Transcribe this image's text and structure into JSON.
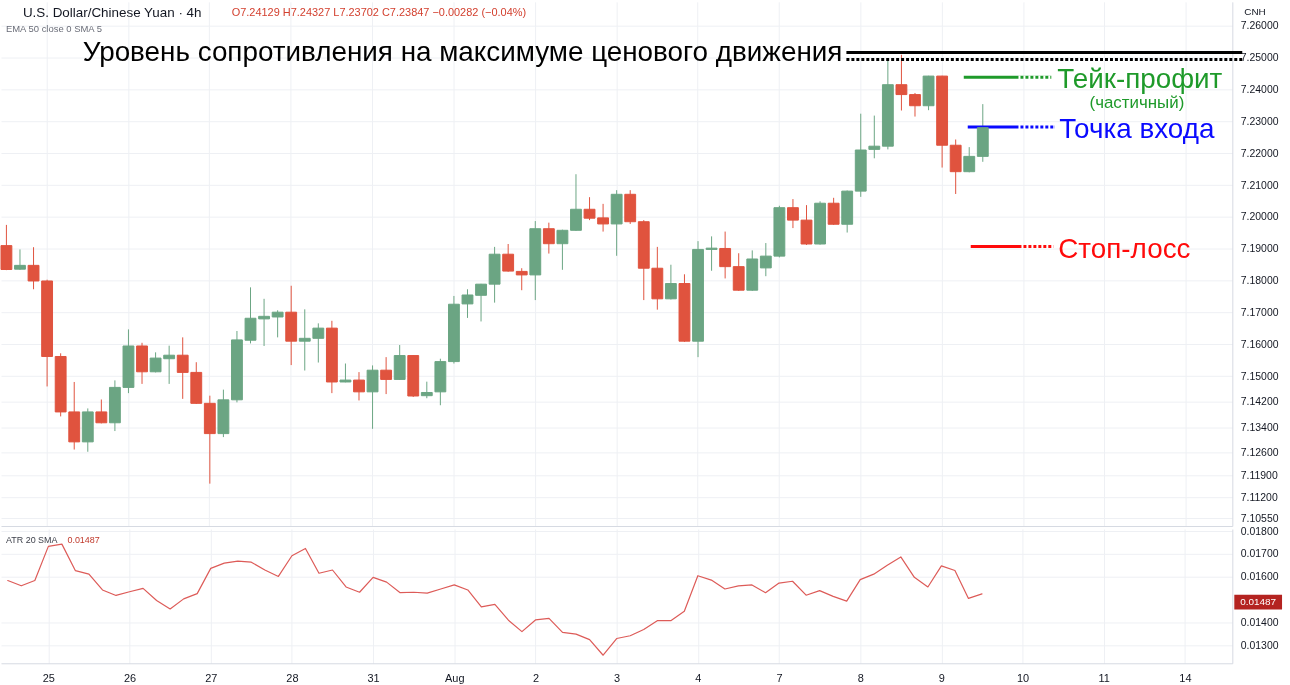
{
  "chart_data": [
    {
      "type": "candlestick",
      "title": "U.S. Dollar/Chinese Yuan · 4h",
      "subtitle": "O7.24129 H7.24327 L7.23702 C7.23847 −0.00282 (−0.04%)",
      "annotations": [
        "EMA 50 close 0 SMA 5",
        "CNH"
      ],
      "categories": [
        null,
        null,
        null,
        null,
        null,
        null,
        null,
        null,
        null,
        null,
        null,
        null,
        null,
        null,
        null,
        null,
        null,
        null,
        null,
        null,
        null,
        null,
        null,
        null,
        null,
        null,
        null,
        null,
        null,
        null,
        null,
        null,
        null,
        null,
        null,
        null,
        null,
        null,
        null,
        null,
        null,
        null,
        null,
        null,
        null,
        null,
        null,
        null,
        null,
        null,
        null,
        null,
        null,
        null,
        null,
        null,
        null,
        null,
        null,
        null,
        null,
        null,
        null,
        null,
        null,
        null,
        null,
        null,
        null,
        null,
        null,
        null,
        null,
        null,
        null,
        null,
        null,
        null,
        null,
        null,
        null,
        null,
        null,
        null,
        null,
        null,
        null,
        null,
        null,
        null,
        null
      ],
      "ohlc": [
        [
          7.191,
          7.1975,
          7.1833,
          7.1835
        ],
        [
          7.1836,
          7.1898,
          7.1834,
          7.1848
        ],
        [
          7.1848,
          7.1905,
          7.1773,
          7.1799
        ],
        [
          7.1799,
          7.1803,
          7.1468,
          7.1562
        ],
        [
          7.1562,
          7.1572,
          7.1374,
          7.1388
        ],
        [
          7.1388,
          7.1482,
          7.127,
          7.1294
        ],
        [
          7.1294,
          7.1399,
          7.1263,
          7.1388
        ],
        [
          7.1388,
          7.1427,
          7.1352,
          7.1354
        ],
        [
          7.1354,
          7.1487,
          7.1328,
          7.1465
        ],
        [
          7.1465,
          7.1647,
          7.1447,
          7.1595
        ],
        [
          7.1595,
          7.1605,
          7.1476,
          7.1514
        ],
        [
          7.1514,
          7.1575,
          7.1512,
          7.1557
        ],
        [
          7.1555,
          7.1596,
          7.1476,
          7.1566
        ],
        [
          7.1566,
          7.1622,
          7.1429,
          7.1512
        ],
        [
          7.1512,
          7.1544,
          7.1413,
          7.1415
        ],
        [
          7.1415,
          7.1439,
          7.1163,
          7.132
        ],
        [
          7.132,
          7.1458,
          7.1309,
          7.1426
        ],
        [
          7.1426,
          7.1642,
          7.1418,
          7.1614
        ],
        [
          7.1613,
          7.1779,
          7.1603,
          7.1682
        ],
        [
          7.168,
          7.1743,
          7.1595,
          7.1688
        ],
        [
          7.1686,
          7.1707,
          7.1622,
          7.1701
        ],
        [
          7.1701,
          7.1784,
          7.1535,
          7.161
        ],
        [
          7.161,
          7.171,
          7.1518,
          7.1619
        ],
        [
          7.1619,
          7.1666,
          7.1543,
          7.1651
        ],
        [
          7.1651,
          7.1674,
          7.1447,
          7.1482
        ],
        [
          7.1482,
          7.154,
          7.1481,
          7.1488
        ],
        [
          7.1488,
          7.1513,
          7.1424,
          7.1451
        ],
        [
          7.1451,
          7.1534,
          7.1335,
          7.1519
        ],
        [
          7.1519,
          7.156,
          7.1444,
          7.149
        ],
        [
          7.149,
          7.1598,
          7.1489,
          7.1565
        ],
        [
          7.1565,
          7.1566,
          7.1435,
          7.1438
        ],
        [
          7.1439,
          7.1483,
          7.1431,
          7.1449
        ],
        [
          7.1451,
          7.1555,
          7.1409,
          7.1546
        ],
        [
          7.1546,
          7.1752,
          7.154,
          7.1726
        ],
        [
          7.1727,
          7.1773,
          7.1683,
          7.1755
        ],
        [
          7.1754,
          7.179,
          7.1672,
          7.1789
        ],
        [
          7.1789,
          7.1906,
          7.1731,
          7.1883
        ],
        [
          7.1883,
          7.1915,
          7.1828,
          7.183
        ],
        [
          7.1829,
          7.1839,
          7.177,
          7.1818
        ],
        [
          7.1818,
          7.1987,
          7.1739,
          7.1963
        ],
        [
          7.1963,
          7.1982,
          7.1885,
          7.1916
        ],
        [
          7.1916,
          7.196,
          7.1834,
          7.1958
        ],
        [
          7.1958,
          7.2134,
          7.1956,
          7.2024
        ],
        [
          7.2024,
          7.2062,
          7.199,
          7.1996
        ],
        [
          7.1997,
          7.2041,
          7.1954,
          7.1978
        ],
        [
          7.1978,
          7.2084,
          7.1878,
          7.2071
        ],
        [
          7.2071,
          7.2084,
          7.1978,
          7.1985
        ],
        [
          7.1985,
          7.199,
          7.1739,
          7.1839
        ],
        [
          7.1839,
          7.1906,
          7.1709,
          7.1743
        ],
        [
          7.1743,
          7.185,
          7.1741,
          7.1791
        ],
        [
          7.1791,
          7.182,
          7.1608,
          7.161
        ],
        [
          7.161,
          7.1924,
          7.156,
          7.1898
        ],
        [
          7.1898,
          7.1939,
          7.1831,
          7.1902
        ],
        [
          7.1901,
          7.1954,
          7.1807,
          7.1844
        ],
        [
          7.1844,
          7.1886,
          7.1768,
          7.177
        ],
        [
          7.177,
          7.1895,
          7.1768,
          7.1868
        ],
        [
          7.184,
          7.1918,
          7.1814,
          7.1877
        ],
        [
          7.1877,
          7.2035,
          7.1873,
          7.2029
        ],
        [
          7.2029,
          7.2056,
          7.1965,
          7.199
        ],
        [
          7.199,
          7.2037,
          7.1912,
          7.1915
        ],
        [
          7.1915,
          7.2049,
          7.1913,
          7.2043
        ],
        [
          7.2043,
          7.206,
          7.1975,
          7.1977
        ],
        [
          7.1977,
          7.2083,
          7.1951,
          7.2081
        ],
        [
          7.2081,
          7.2324,
          7.2063,
          7.221
        ],
        [
          7.2212,
          7.2318,
          7.2184,
          7.2222
        ],
        [
          7.2222,
          7.2493,
          7.2212,
          7.2415
        ],
        [
          7.2415,
          7.2509,
          7.2334,
          7.2384
        ],
        [
          7.2384,
          7.2389,
          7.2315,
          7.2349
        ],
        [
          7.2349,
          7.2443,
          7.2335,
          7.2442
        ],
        [
          7.2442,
          7.2443,
          7.2155,
          7.2225
        ],
        [
          7.2225,
          7.2243,
          7.2072,
          7.2142
        ],
        [
          7.2142,
          7.2219,
          7.214,
          7.219
        ],
        [
          7.219,
          7.2354,
          7.2173,
          7.228
        ],
        null,
        null,
        null,
        null,
        null,
        null,
        null,
        null,
        null,
        null,
        null,
        null,
        null,
        null,
        null,
        null,
        null,
        null
      ],
      "colors": [
        "#e0533e",
        "#6ba583",
        "#e0533e",
        "#e0533e",
        "#e0533e",
        "#e0533e",
        "#6ba583",
        "#e0533e",
        "#6ba583",
        "#6ba583",
        "#e0533e",
        "#6ba583",
        "#6ba583",
        "#e0533e",
        "#e0533e",
        "#e0533e",
        "#6ba583",
        "#6ba583",
        "#6ba583",
        "#6ba583",
        "#6ba583",
        "#e0533e",
        "#6ba583",
        "#6ba583",
        "#e0533e",
        "#6ba583",
        "#e0533e",
        "#6ba583",
        "#e0533e",
        "#6ba583",
        "#e0533e",
        "#6ba583",
        "#6ba583",
        "#6ba583",
        "#6ba583",
        "#6ba583",
        "#6ba583",
        "#e0533e",
        "#e0533e",
        "#6ba583",
        "#e0533e",
        "#6ba583",
        "#6ba583",
        "#e0533e",
        "#e0533e",
        "#6ba583",
        "#e0533e",
        "#e0533e",
        "#e0533e",
        "#6ba583",
        "#e0533e",
        "#6ba583",
        "#6ba583",
        "#e0533e",
        "#e0533e",
        "#6ba583",
        "#6ba583",
        "#6ba583",
        "#e0533e",
        "#e0533e",
        "#6ba583",
        "#e0533e",
        "#6ba583",
        "#6ba583",
        "#6ba583",
        "#6ba583",
        "#e0533e",
        "#e0533e",
        "#6ba583",
        "#e0533e",
        "#e0533e",
        "#6ba583",
        "#6ba583",
        null,
        null,
        null,
        null,
        null,
        null,
        null,
        null,
        null,
        null,
        null,
        null,
        null,
        null,
        null,
        null,
        null,
        null
      ],
      "ylim": [
        7.103,
        7.2675
      ],
      "yticks": [
        {
          "value": 7.26,
          "label": "7.26000"
        },
        {
          "value": 7.25,
          "label": "7.25000"
        },
        {
          "value": 7.24,
          "label": "7.24000"
        },
        {
          "value": 7.23,
          "label": "7.23000"
        },
        {
          "value": 7.22,
          "label": "7.22000"
        },
        {
          "value": 7.21,
          "label": "7.21000"
        },
        {
          "value": 7.2,
          "label": "7.20000"
        },
        {
          "value": 7.19,
          "label": "7.19000"
        },
        {
          "value": 7.18,
          "label": "7.18000"
        },
        {
          "value": 7.17,
          "label": "7.17000"
        },
        {
          "value": 7.16,
          "label": "7.16000"
        },
        {
          "value": 7.15,
          "label": "7.15000"
        },
        {
          "value": 7.142,
          "label": "7.14200"
        },
        {
          "value": 7.134,
          "label": "7.13400"
        },
        {
          "value": 7.126,
          "label": "7.12600"
        },
        {
          "value": 7.119,
          "label": "7.11900"
        },
        {
          "value": 7.112,
          "label": "7.11200"
        },
        {
          "value": 7.1055,
          "label": "7.10550"
        }
      ],
      "grid": true,
      "tick_labels": "y",
      "ref_lines": [
        {
          "axis": "y",
          "value": 7.2516,
          "label": "Уровень сопротивления на максимуме ценового движения",
          "color": "#000000",
          "line_style": "solid"
        },
        {
          "axis": "y",
          "value": 7.2494,
          "color": "#000000",
          "line_style": "dotted"
        },
        {
          "axis": "y",
          "value": 7.2438,
          "label": "Тейк-профит\n(частичный)",
          "color": "#1e9a2a",
          "line_style": "solid"
        },
        {
          "axis": "y",
          "value": 7.2282,
          "label": "Точка входа",
          "color": "#0a0aff",
          "line_style": "solid"
        },
        {
          "axis": "y",
          "value": 7.1907,
          "label": "Стоп-лосс",
          "color": "#ff0a0a",
          "line_style": "solid"
        }
      ]
    },
    {
      "type": "line",
      "categories": [
        null,
        null,
        null,
        "25",
        null,
        null,
        null,
        null,
        null,
        "26",
        null,
        null,
        null,
        null,
        null,
        "27",
        null,
        null,
        null,
        null,
        null,
        "28",
        null,
        null,
        null,
        null,
        null,
        "31",
        null,
        null,
        null,
        null,
        null,
        "Aug",
        null,
        null,
        null,
        null,
        null,
        "2",
        null,
        null,
        null,
        null,
        null,
        "3",
        null,
        null,
        null,
        null,
        null,
        "4",
        null,
        null,
        null,
        null,
        null,
        "7",
        null,
        null,
        null,
        null,
        null,
        "8",
        null,
        null,
        null,
        null,
        null,
        "9",
        null,
        null,
        null,
        null,
        null,
        "10",
        null,
        null,
        null,
        null,
        null,
        "11",
        null,
        null,
        null,
        null,
        null,
        "14",
        null,
        null,
        null
      ],
      "series": [
        {
          "name": "ATR 20 SMA",
          "color": "#dd5b58",
          "values": [
            0.01584,
            0.01561,
            0.01584,
            0.01733,
            0.01743,
            0.01627,
            0.01612,
            0.01543,
            0.01519,
            0.01535,
            0.0155,
            0.01497,
            0.0146,
            0.01504,
            0.01527,
            0.01637,
            0.0166,
            0.01669,
            0.01664,
            0.0163,
            0.01602,
            0.01692,
            0.01724,
            0.01616,
            0.0163,
            0.01556,
            0.01533,
            0.01598,
            0.01577,
            0.01531,
            0.01533,
            0.01529,
            0.01547,
            0.01565,
            0.01543,
            0.01469,
            0.0148,
            0.01411,
            0.01361,
            0.01412,
            0.01419,
            0.01358,
            0.0135,
            0.01326,
            0.01258,
            0.01331,
            0.01343,
            0.0137,
            0.01409,
            0.01409,
            0.0145,
            0.01605,
            0.01586,
            0.01547,
            0.01561,
            0.01565,
            0.01531,
            0.01573,
            0.01581,
            0.0152,
            0.0154,
            0.01515,
            0.01494,
            0.01588,
            0.01612,
            0.01651,
            0.01687,
            0.01598,
            0.01556,
            0.01648,
            0.01628,
            0.01506,
            0.01526,
            null,
            null,
            null,
            null,
            null,
            null,
            null,
            null,
            null,
            null,
            null,
            null,
            null,
            null,
            null,
            null,
            null,
            null
          ]
        }
      ],
      "ylim": [
        0.01223,
        0.01809
      ],
      "yticks": [
        {
          "value": 0.018,
          "label": "0.01800"
        },
        {
          "value": 0.017,
          "label": "0.01700"
        },
        {
          "value": 0.016,
          "label": "0.01600"
        },
        {
          "value": 0.014,
          "label": "0.01400"
        },
        {
          "value": 0.013,
          "label": "0.01300"
        }
      ],
      "grid": true,
      "legend": "top left",
      "annotations": [
        "0.01487",
        "0.01487"
      ]
    }
  ]
}
